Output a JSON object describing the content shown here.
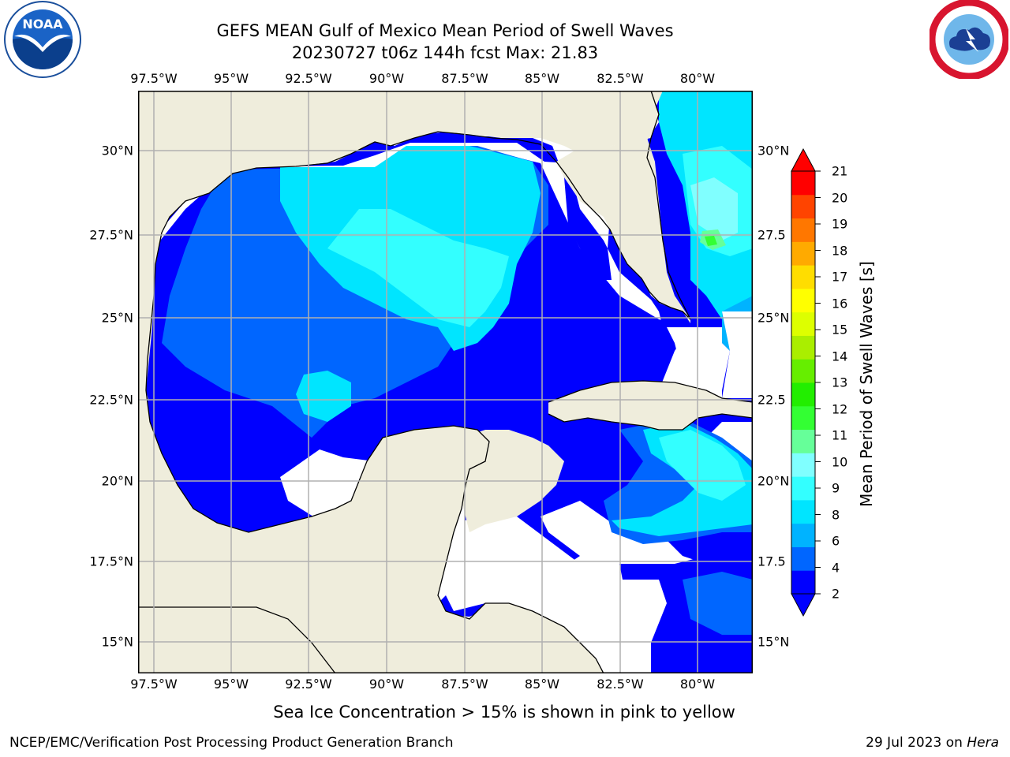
{
  "header": {
    "title_line1": "GEFS MEAN Gulf of Mexico Mean Period of Swell Waves",
    "title_line2": "20230727 t06z 144h fcst   Max: 21.83"
  },
  "logos": {
    "noaa": {
      "text": "NOAA",
      "icon": "noaa-seagull-icon",
      "color": "#1a63c6"
    },
    "nws": {
      "icon": "nws-storm-cloud-icon",
      "ring_color": "#d8152f"
    }
  },
  "map": {
    "lon_ticks": [
      "97.5°W",
      "95°W",
      "92.5°W",
      "90°W",
      "87.5°W",
      "85°W",
      "82.5°W",
      "80°W"
    ],
    "lat_ticks_left": [
      "30°N",
      "27.5°N",
      "25°N",
      "22.5°N",
      "20°N",
      "17.5°N",
      "15°N"
    ],
    "lat_ticks_right": [
      "30°N",
      "27.5",
      "25°N",
      "22.5",
      "20°N",
      "17.5",
      "15°N"
    ],
    "land_color": "#efeddc",
    "coast_color": "#000000",
    "grid_color": "#b0b0b0"
  },
  "colorbar": {
    "label": "Mean Period of Swell Waves [s]",
    "ticks": [
      "2",
      "4",
      "6",
      "8",
      "9",
      "10",
      "11",
      "12",
      "13",
      "14",
      "15",
      "16",
      "17",
      "18",
      "19",
      "20",
      "21"
    ],
    "colors": [
      "#0000ff",
      "#0066ff",
      "#00b3ff",
      "#00e5ff",
      "#33ffff",
      "#80ffff",
      "#66ff99",
      "#33ff33",
      "#22ee00",
      "#66ee00",
      "#aaee00",
      "#ddff00",
      "#ffff00",
      "#ffdd00",
      "#ffaa00",
      "#ff7700",
      "#ff4400",
      "#ff0000"
    ]
  },
  "footer": {
    "note": "Sea Ice Concentration > 15% is shown in pink to yellow",
    "credit": "NCEP/EMC/Verification Post Processing Product Generation Branch",
    "date": "29 Jul 2023 on",
    "machine": "Hera"
  }
}
